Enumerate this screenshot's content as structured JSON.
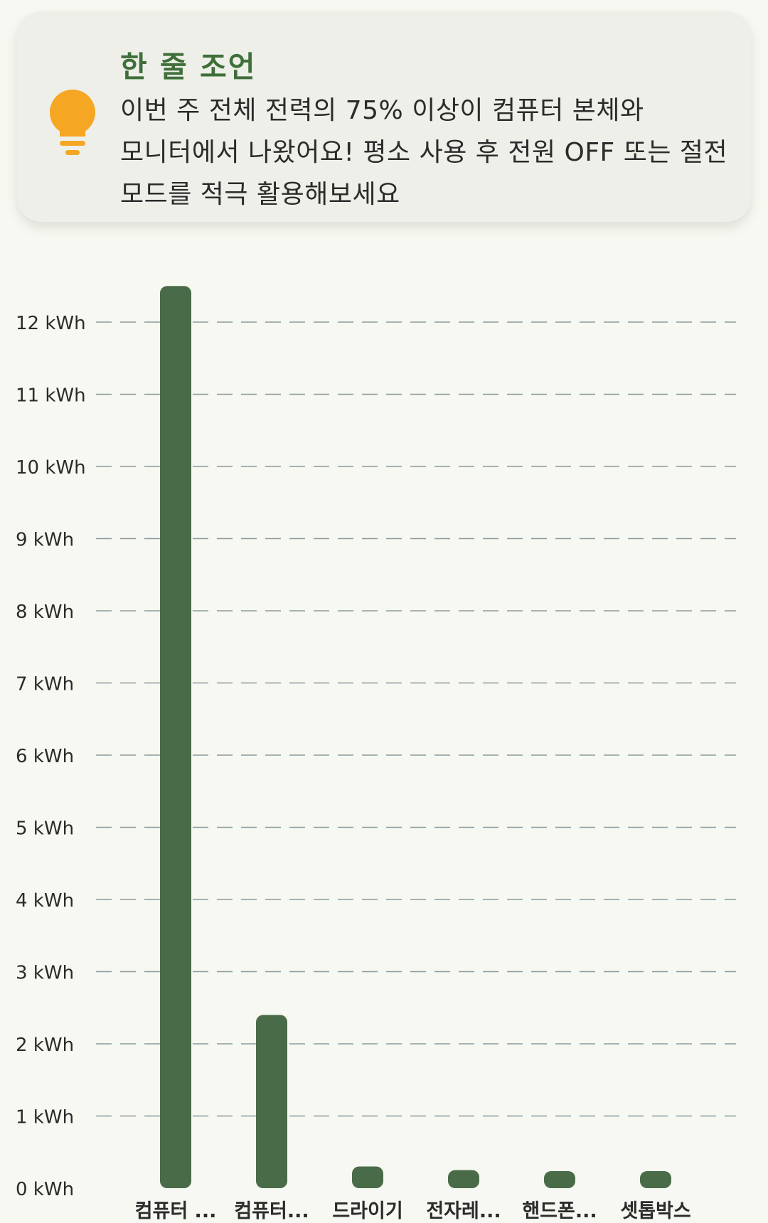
{
  "tip": {
    "title": "한 줄 조언",
    "body": "이번 주 전체 전력의 75% 이상이 컴퓨터 본체와 모니터에서 나왔어요! 평소 사용 후 전원 OFF 또는 절전 모드를 적극 활용해보세요",
    "icon": "lightbulb-icon",
    "colors": {
      "title": "#3f6f3a",
      "icon": "#f5a623",
      "card_background": "#edefe8"
    }
  },
  "chart_data": {
    "type": "bar",
    "title": "",
    "xlabel": "",
    "ylabel": "",
    "categories": [
      "컴퓨터 ...",
      "컴퓨터...",
      "드라이기",
      "전자레...",
      "핸드폰...",
      "셋톱박스"
    ],
    "values": [
      12.5,
      2.4,
      0.3,
      0.25,
      0.2,
      0.2
    ],
    "yticks": [
      "0 kWh",
      "1 kWh",
      "2 kWh",
      "3 kWh",
      "4 kWh",
      "5 kWh",
      "6 kWh",
      "7 kWh",
      "8 kWh",
      "9 kWh",
      "10 kWh",
      "11 kWh",
      "12 kWh"
    ],
    "ylim": [
      0,
      12
    ],
    "grid": true,
    "grid_style": "dashed",
    "legend": "none",
    "bar_color": "#4a6b47"
  }
}
